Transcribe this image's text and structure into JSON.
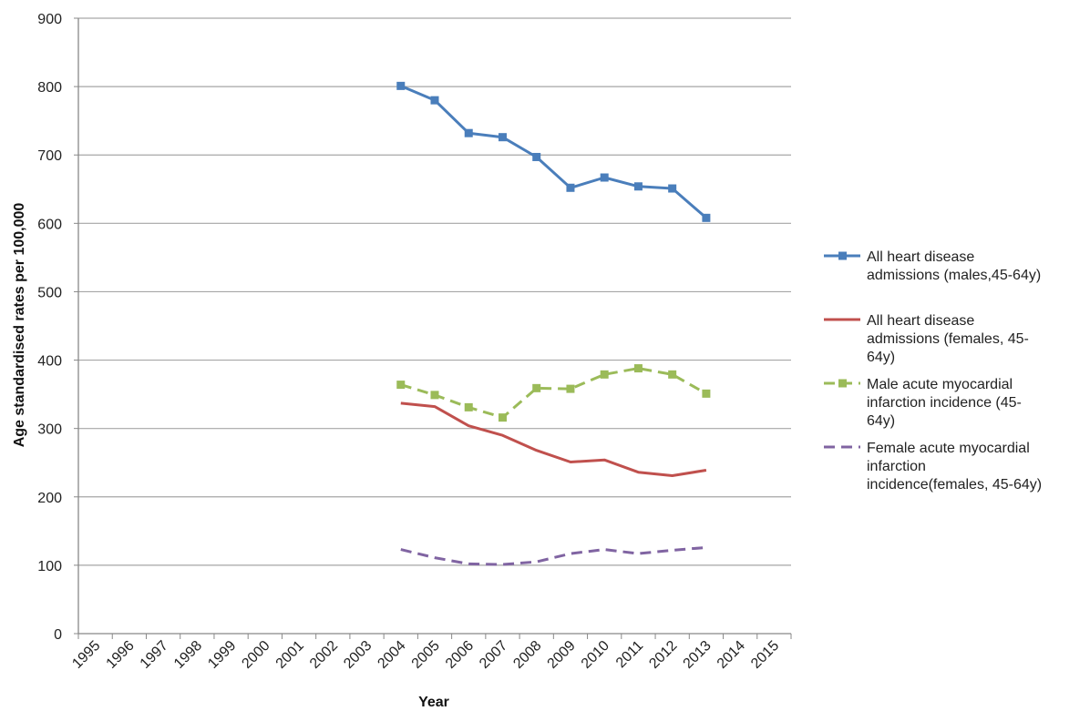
{
  "chart_data": {
    "type": "line",
    "title": "",
    "xlabel": "Year",
    "ylabel": "Age standardised rates per 100,000",
    "categories": [
      "1995",
      "1996",
      "1997",
      "1998",
      "1999",
      "2000",
      "2001",
      "2002",
      "2003",
      "2004",
      "2005",
      "2006",
      "2007",
      "2008",
      "2009",
      "2010",
      "2011",
      "2012",
      "2013",
      "2014",
      "2015"
    ],
    "ylim": [
      0,
      900
    ],
    "yticks": [
      0,
      100,
      200,
      300,
      400,
      500,
      600,
      700,
      800,
      900
    ],
    "grid": true,
    "legend_position": "right",
    "series": [
      {
        "name": "All heart disease admissions (males,45-64y)",
        "legend_lines": [
          "All heart disease",
          "admissions (males,45-64y)"
        ],
        "color": "#4a7ebb",
        "style": "solid",
        "marker": "square",
        "x": [
          "2004",
          "2005",
          "2006",
          "2007",
          "2008",
          "2009",
          "2010",
          "2011",
          "2012",
          "2013"
        ],
        "values": [
          801,
          780,
          732,
          726,
          697,
          652,
          667,
          654,
          651,
          608
        ]
      },
      {
        "name": "All heart disease admissions (females, 45-64y)",
        "legend_lines": [
          "All heart disease",
          "admissions (females, 45-",
          "64y)"
        ],
        "color": "#c0504d",
        "style": "solid",
        "marker": "none",
        "x": [
          "2004",
          "2005",
          "2006",
          "2007",
          "2008",
          "2009",
          "2010",
          "2011",
          "2012",
          "2013"
        ],
        "values": [
          337,
          332,
          304,
          290,
          268,
          251,
          254,
          236,
          231,
          239
        ]
      },
      {
        "name": "Male acute myocardial infarction incidence (45-64y)",
        "legend_lines": [
          "Male acute myocardial",
          "infarction incidence (45-",
          "64y)"
        ],
        "color": "#9bbb59",
        "style": "dashed",
        "marker": "square",
        "x": [
          "2004",
          "2005",
          "2006",
          "2007",
          "2008",
          "2009",
          "2010",
          "2011",
          "2012",
          "2013"
        ],
        "values": [
          364,
          349,
          331,
          316,
          359,
          358,
          379,
          388,
          379,
          351
        ]
      },
      {
        "name": "Female acute myocardial infarction incidence(females, 45-64y)",
        "legend_lines": [
          "Female acute myocardial",
          "infarction",
          "incidence(females, 45-64y)"
        ],
        "color": "#8064a2",
        "style": "dashed",
        "marker": "none",
        "x": [
          "2004",
          "2005",
          "2006",
          "2007",
          "2008",
          "2009",
          "2010",
          "2011",
          "2012",
          "2013"
        ],
        "values": [
          123,
          111,
          102,
          101,
          105,
          117,
          123,
          117,
          122,
          126
        ]
      }
    ]
  }
}
